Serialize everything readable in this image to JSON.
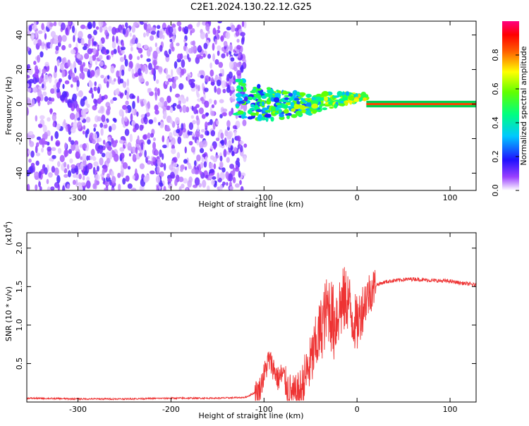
{
  "title": "C2E1.2024.130.22.12.G25",
  "chart_data": [
    {
      "type": "heatmap",
      "xlabel": "Height of straight line (km)",
      "ylabel": "Frequency (Hz)",
      "xlim": [
        -355,
        128
      ],
      "ylim": [
        -50,
        48
      ],
      "xticks": [
        -300,
        -200,
        -100,
        0,
        100
      ],
      "yticks": [
        -40,
        -20,
        0,
        20,
        40
      ],
      "colorbar": {
        "label": "Normalized spectral amplitude",
        "range": [
          0.0,
          1.0
        ],
        "ticks": [
          0.0,
          0.2,
          0.4,
          0.6,
          0.8
        ],
        "colors": [
          "#ffffff",
          "#7a00ff",
          "#0000ff",
          "#00ffff",
          "#00ff00",
          "#ffff00",
          "#ff0000",
          "#ff0090"
        ]
      },
      "regions": [
        {
          "x_range": [
            -355,
            -120
          ],
          "freq_range": [
            -50,
            48
          ],
          "amplitude": 0.1,
          "description_color": "#7a00ff"
        },
        {
          "x_range": [
            -130,
            10
          ],
          "freq_range": [
            -15,
            10
          ],
          "amplitude": 0.35
        },
        {
          "x_range": [
            10,
            128
          ],
          "freq_range": [
            -1.5,
            1.5
          ],
          "amplitude": 0.85
        }
      ]
    },
    {
      "type": "line",
      "xlabel": "Height of straight line (km)",
      "ylabel": "SNR (10 * v/v)",
      "exponent_label": "(x10",
      "exponent_power": "4",
      "exponent_close": ")",
      "xlim": [
        -355,
        128
      ],
      "ylim": [
        0,
        2.2
      ],
      "xticks": [
        -300,
        -200,
        -100,
        0,
        100
      ],
      "yticks": [
        0.5,
        1.0,
        1.5,
        2.0
      ],
      "series": [
        {
          "color": "#ee3333",
          "x": [
            -355,
            -300,
            -250,
            -200,
            -150,
            -120,
            -105,
            -100,
            -95,
            -90,
            -85,
            -80,
            -75,
            -70,
            -65,
            -60,
            -55,
            -50,
            -45,
            -40,
            -35,
            -30,
            -25,
            -20,
            -15,
            -10,
            -5,
            0,
            5,
            10,
            15,
            20,
            30,
            40,
            60,
            80,
            100,
            110,
            128
          ],
          "y": [
            0.05,
            0.04,
            0.04,
            0.05,
            0.05,
            0.06,
            0.15,
            0.35,
            0.55,
            0.45,
            0.3,
            0.35,
            0.2,
            0.1,
            0.07,
            0.15,
            0.35,
            0.5,
            0.7,
            0.9,
            1.1,
            1.25,
            1.0,
            1.2,
            1.3,
            1.35,
            1.1,
            1.0,
            1.2,
            1.35,
            1.45,
            1.52,
            1.56,
            1.58,
            1.6,
            1.58,
            1.57,
            1.55,
            1.52
          ]
        }
      ]
    }
  ]
}
